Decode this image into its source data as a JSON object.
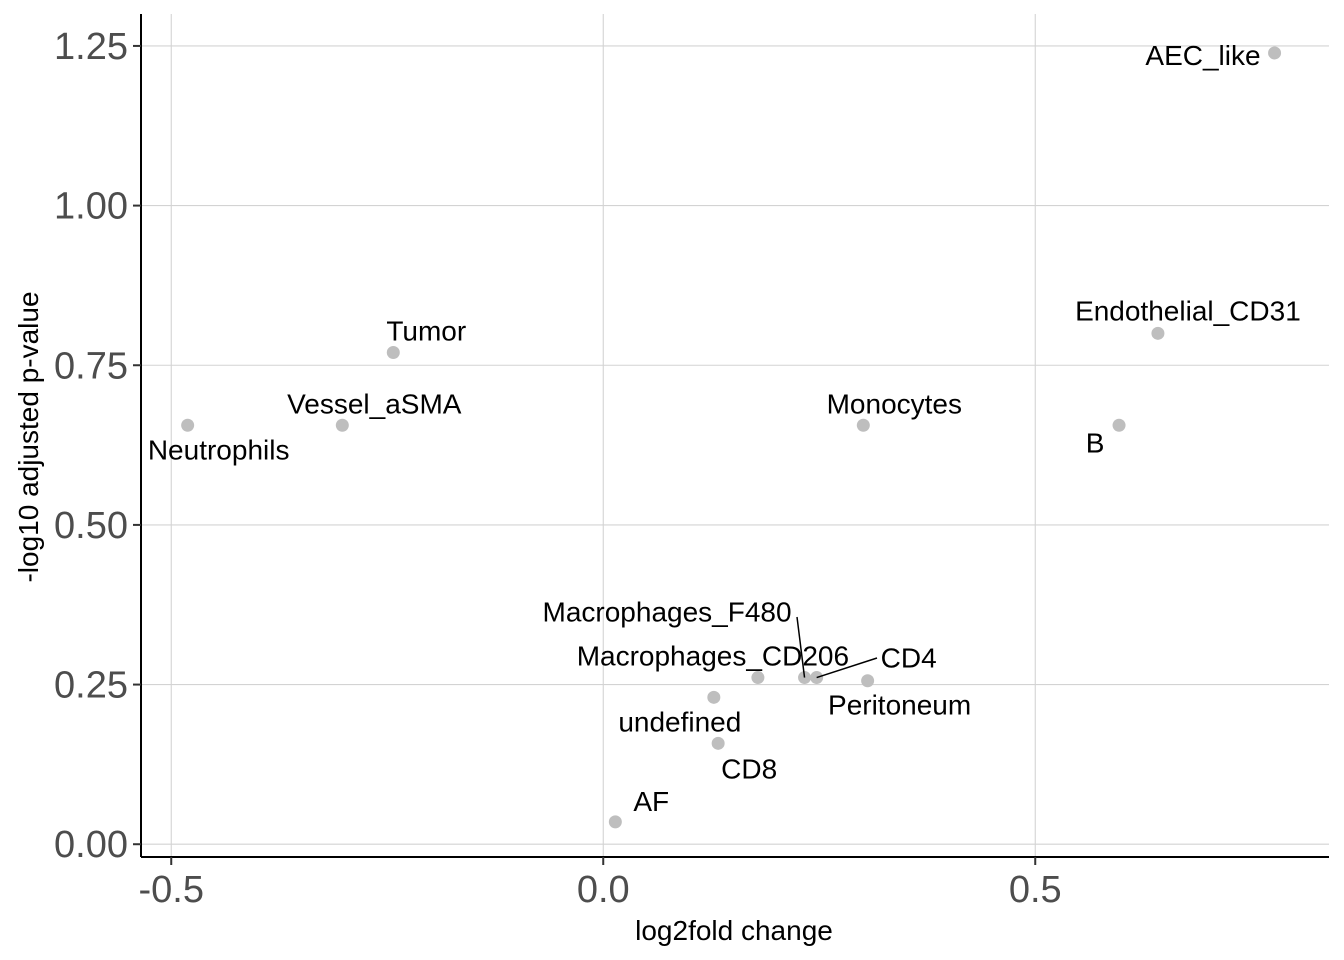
{
  "chart_data": {
    "type": "scatter",
    "xlabel": "log2fold change",
    "ylabel": "-log10 adjusted p-value",
    "xlim": [
      -0.535,
      0.84
    ],
    "ylim": [
      -0.02,
      1.3
    ],
    "x_ticks": [
      {
        "value": -0.5,
        "label": "-0.5"
      },
      {
        "value": 0.0,
        "label": "0.0"
      },
      {
        "value": 0.5,
        "label": "0.5"
      }
    ],
    "y_ticks": [
      {
        "value": 0.0,
        "label": "0.00"
      },
      {
        "value": 0.25,
        "label": "0.25"
      },
      {
        "value": 0.5,
        "label": "0.50"
      },
      {
        "value": 0.75,
        "label": "0.75"
      },
      {
        "value": 1.0,
        "label": "1.00"
      },
      {
        "value": 1.25,
        "label": "1.25"
      }
    ],
    "grid": true,
    "point_color": "#bebebe",
    "points": [
      {
        "label": "AEC_like",
        "x": 0.777,
        "y": 1.239
      },
      {
        "label": "Endothelial_CD31",
        "x": 0.642,
        "y": 0.8
      },
      {
        "label": "B",
        "x": 0.597,
        "y": 0.656
      },
      {
        "label": "Monocytes",
        "x": 0.301,
        "y": 0.656
      },
      {
        "label": "Tumor",
        "x": -0.243,
        "y": 0.77
      },
      {
        "label": "Vessel_aSMA",
        "x": -0.302,
        "y": 0.656
      },
      {
        "label": "Neutrophils",
        "x": -0.481,
        "y": 0.656
      },
      {
        "label": "Macrophages_F480",
        "x": 0.233,
        "y": 0.261
      },
      {
        "label": "Macrophages_CD206",
        "x": 0.179,
        "y": 0.261
      },
      {
        "label": "CD4",
        "x": 0.247,
        "y": 0.261
      },
      {
        "label": "Peritoneum",
        "x": 0.306,
        "y": 0.256
      },
      {
        "label": "undefined",
        "x": 0.128,
        "y": 0.23
      },
      {
        "label": "CD8",
        "x": 0.133,
        "y": 0.158
      },
      {
        "label": "AF",
        "x": 0.014,
        "y": 0.035
      }
    ]
  }
}
